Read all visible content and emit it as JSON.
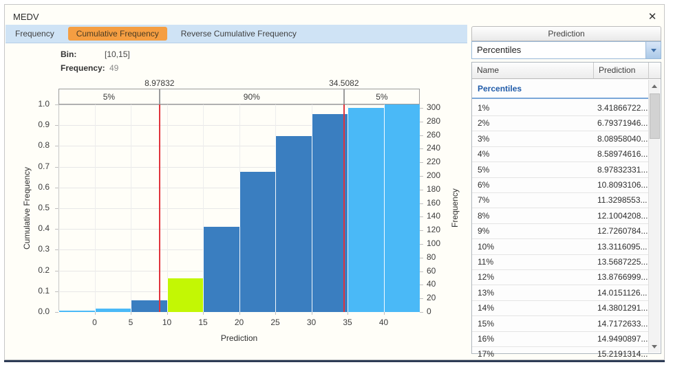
{
  "window": {
    "title": "MEDV",
    "close_glyph": "✕"
  },
  "tabs": [
    {
      "label": "Frequency",
      "active": false
    },
    {
      "label": "Cumulative Frequency",
      "active": true
    },
    {
      "label": "Reverse Cumulative Frequency",
      "active": false
    }
  ],
  "bin_info": {
    "bin_label": "Bin:",
    "bin_value": "[10,15]",
    "frequency_label": "Frequency:",
    "frequency_value": "49"
  },
  "chart_data": {
    "type": "bar",
    "subtype": "cumulative-frequency-histogram",
    "xlabel": "Prediction",
    "ylabel_left": "Cumulative Frequency",
    "ylabel_right": "Frequency",
    "xlim": [
      -5,
      45
    ],
    "ylim_left": [
      0,
      1
    ],
    "right_axis_total": 305,
    "grid": true,
    "x_ticks": [
      0,
      5,
      10,
      15,
      20,
      25,
      30,
      35,
      40
    ],
    "y_ticks_left": [
      0,
      0.1,
      0.2,
      0.3,
      0.4,
      0.5,
      0.6,
      0.7,
      0.8,
      0.9,
      1.0
    ],
    "y_ticks_right": [
      0,
      20,
      40,
      60,
      80,
      100,
      120,
      140,
      160,
      180,
      200,
      220,
      240,
      260,
      280,
      300
    ],
    "bars": [
      {
        "range": [
          -5,
          0
        ],
        "cumulative": 0.005,
        "color": "light"
      },
      {
        "range": [
          0,
          5
        ],
        "cumulative": 0.016,
        "color": "light"
      },
      {
        "range": [
          5,
          10
        ],
        "cumulative": 0.056,
        "color": "dark"
      },
      {
        "range": [
          10,
          15
        ],
        "cumulative": 0.161,
        "color": "highlight",
        "frequency": 49,
        "bin_label": "[10,15]"
      },
      {
        "range": [
          15,
          20
        ],
        "cumulative": 0.41,
        "color": "dark"
      },
      {
        "range": [
          20,
          25
        ],
        "cumulative": 0.675,
        "color": "dark"
      },
      {
        "range": [
          25,
          30
        ],
        "cumulative": 0.847,
        "color": "dark"
      },
      {
        "range": [
          30,
          35
        ],
        "cumulative": 0.952,
        "color": "dark"
      },
      {
        "range": [
          35,
          40
        ],
        "cumulative": 0.985,
        "color": "light"
      },
      {
        "range": [
          40,
          45
        ],
        "cumulative": 1.0,
        "color": "light"
      }
    ],
    "percentile_lines": [
      {
        "label": "8.97832",
        "x": 8.97832
      },
      {
        "label": "34.5082",
        "x": 34.5082
      }
    ],
    "bands": [
      {
        "label": "5%"
      },
      {
        "label": "90%"
      },
      {
        "label": "5%"
      }
    ],
    "colors": {
      "bar_light": "#4ab9f7",
      "bar_dark": "#3a7ec0",
      "bar_highlight": "#c3f704",
      "marker": "#e0333c"
    }
  },
  "panel": {
    "header": "Prediction",
    "dropdown": {
      "value": "Percentiles",
      "chevron_icon": "chevron-down"
    },
    "table": {
      "columns": [
        "Name",
        "Prediction"
      ],
      "group_header": "Percentiles",
      "rows": [
        [
          "1%",
          "3.41866722..."
        ],
        [
          "2%",
          "6.79371946..."
        ],
        [
          "3%",
          "8.08958040..."
        ],
        [
          "4%",
          "8.58974616..."
        ],
        [
          "5%",
          "8.97832331..."
        ],
        [
          "6%",
          "10.8093106..."
        ],
        [
          "7%",
          "11.3298553..."
        ],
        [
          "8%",
          "12.1004208..."
        ],
        [
          "9%",
          "12.7260784..."
        ],
        [
          "10%",
          "13.3116095..."
        ],
        [
          "11%",
          "13.5687225..."
        ],
        [
          "12%",
          "13.8766999..."
        ],
        [
          "13%",
          "14.0151126..."
        ],
        [
          "14%",
          "14.3801291..."
        ],
        [
          "15%",
          "14.7172633..."
        ],
        [
          "16%",
          "14.9490897..."
        ],
        [
          "17%",
          "15.2191314..."
        ]
      ]
    }
  },
  "theme": {
    "tab_strip_bg": "#cfe3f5",
    "tab_active_bg": "#f59e42",
    "group_header_color": "#1f5aa8"
  }
}
